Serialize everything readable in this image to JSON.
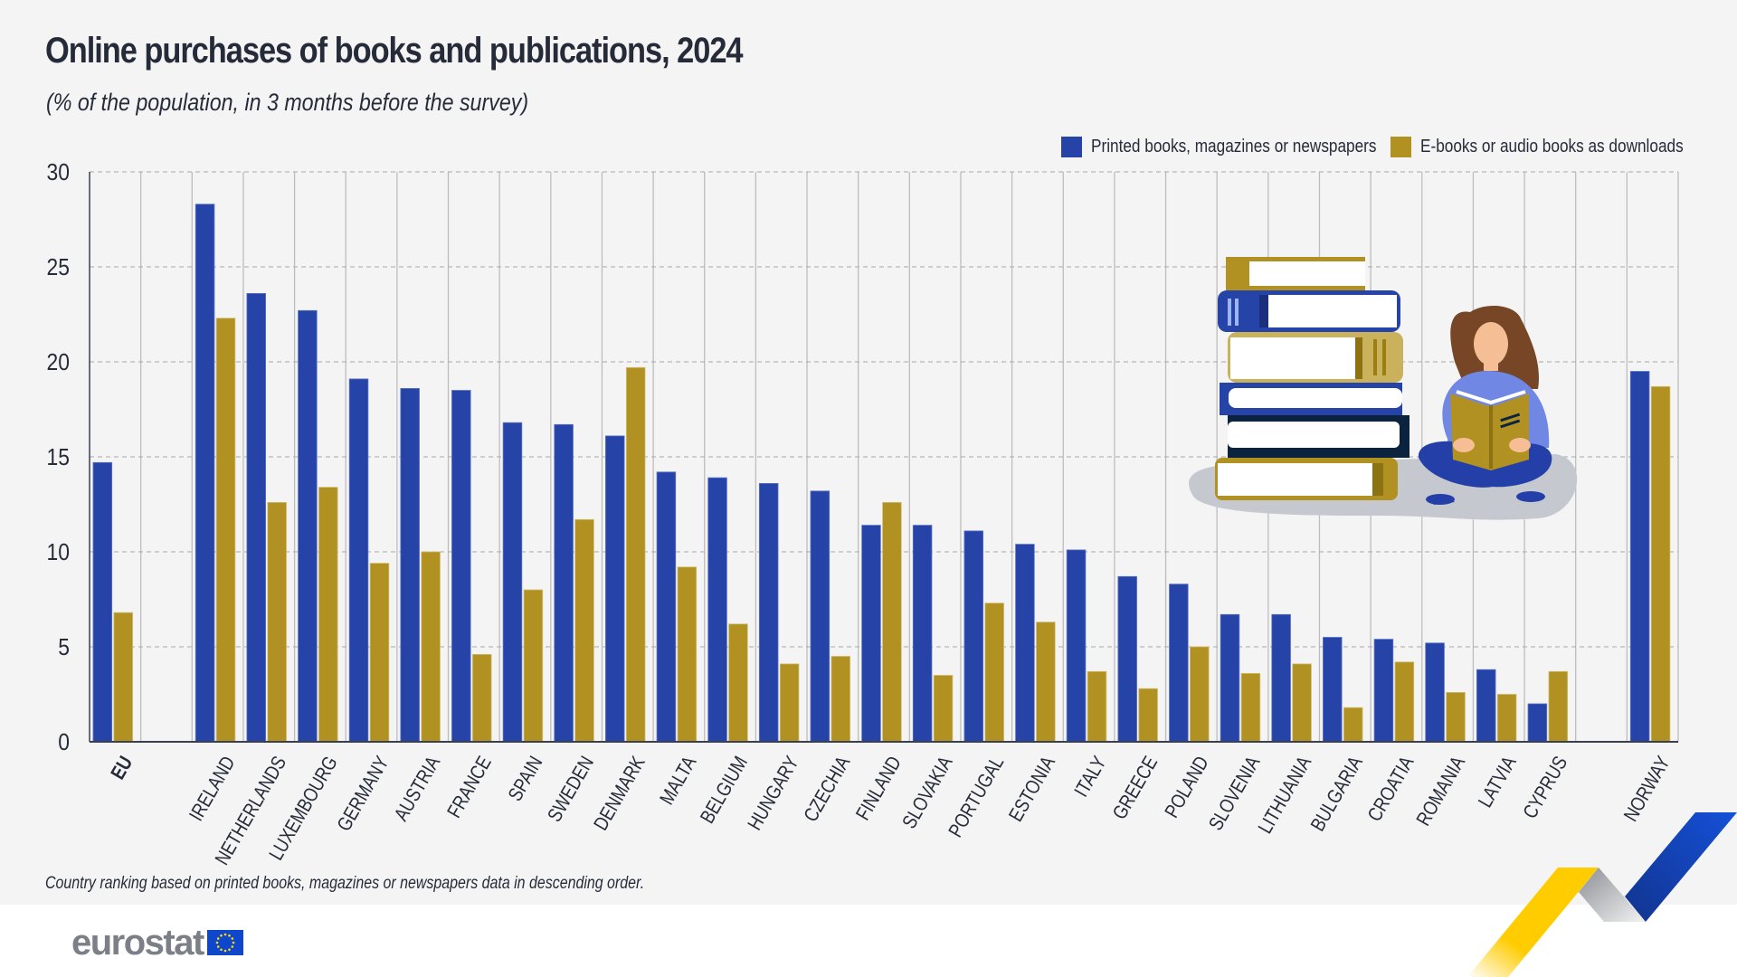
{
  "header": {
    "title": "Online purchases of books and publications, 2024",
    "subtitle": "(% of the population, in 3 months before the survey)"
  },
  "legend": [
    {
      "label": "Printed books, magazines or newspapers",
      "color": "#2643a7"
    },
    {
      "label": "E-books or audio books as downloads",
      "color": "#b09121"
    }
  ],
  "footnote": "Country ranking based on printed books, magazines or newspapers data in descending order.",
  "logo": {
    "text": "eurostat",
    "flag_color": "#0e47cb",
    "star_color": "#ffde00"
  },
  "colors": {
    "text": "#262b3a",
    "background": "#f4f4f4",
    "grid": "#a9a9a9",
    "axis": "#3a3f52"
  },
  "chart_data": {
    "type": "bar",
    "title": "Online purchases of books and publications, 2024",
    "subtitle": "(% of the population, in 3 months before the survey)",
    "xlabel": "",
    "ylabel": "",
    "ylim": [
      0,
      30
    ],
    "yticks": [
      0,
      5,
      10,
      15,
      20,
      25,
      30
    ],
    "grid": true,
    "legend_position": "top-right",
    "categories": [
      "EU",
      "",
      "IRELAND",
      "NETHERLANDS",
      "LUXEMBOURG",
      "GERMANY",
      "AUSTRIA",
      "FRANCE",
      "SPAIN",
      "SWEDEN",
      "DENMARK",
      "MALTA",
      "BELGIUM",
      "HUNGARY",
      "CZECHIA",
      "FINLAND",
      "SLOVAKIA",
      "PORTUGAL",
      "ESTONIA",
      "ITALY",
      "GREECE",
      "POLAND",
      "SLOVENIA",
      "LITHUANIA",
      "BULGARIA",
      "CROATIA",
      "ROMANIA",
      "LATVIA",
      "CYPRUS",
      "",
      "NORWAY"
    ],
    "bold_categories": [
      "EU"
    ],
    "series": [
      {
        "name": "Printed books, magazines or newspapers",
        "color": "#2643a7",
        "values": [
          14.7,
          null,
          28.3,
          23.6,
          22.7,
          19.1,
          18.6,
          18.5,
          16.8,
          16.7,
          16.1,
          14.2,
          13.9,
          13.6,
          13.2,
          11.4,
          11.4,
          11.1,
          10.4,
          10.1,
          8.7,
          8.3,
          6.7,
          6.7,
          5.5,
          5.4,
          5.2,
          3.8,
          2.0,
          null,
          19.5
        ]
      },
      {
        "name": "E-books or audio books as downloads",
        "color": "#b09121",
        "values": [
          6.8,
          null,
          22.3,
          12.6,
          13.4,
          9.4,
          10.0,
          4.6,
          8.0,
          11.7,
          19.7,
          9.2,
          6.2,
          4.1,
          4.5,
          12.6,
          3.5,
          7.3,
          6.3,
          3.7,
          2.8,
          5.0,
          3.6,
          4.1,
          1.8,
          4.2,
          2.6,
          2.5,
          3.7,
          null,
          18.7
        ]
      }
    ],
    "annotation": "Country ranking based on printed books, magazines or newspapers data in descending order."
  }
}
